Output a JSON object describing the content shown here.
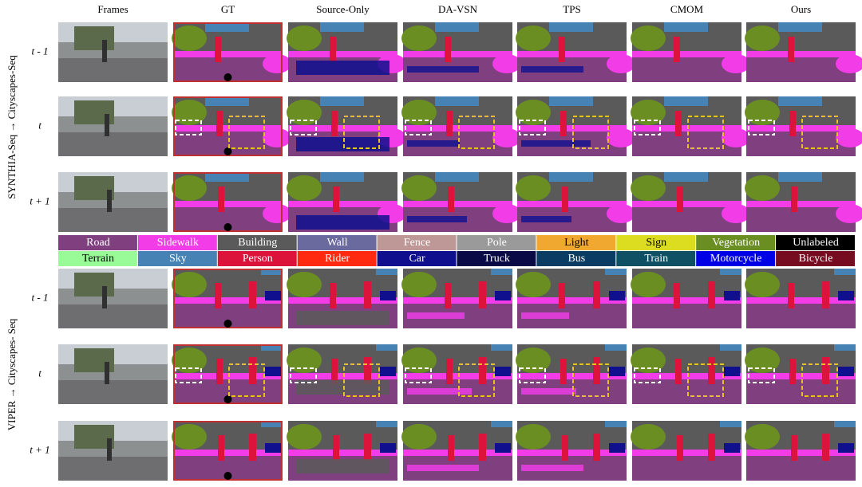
{
  "columns": [
    "Frames",
    "GT",
    "Source-Only",
    "DA-VSN",
    "TPS",
    "CMOM",
    "Ours"
  ],
  "sections": [
    {
      "label": "SYNTHIA-Seq → Cityscapes-Seq",
      "rows": [
        "t - 1",
        "t",
        "t + 1"
      ]
    },
    {
      "label": "VIPER → Cityscapes- Seq",
      "rows": [
        "t - 1",
        "t",
        "t + 1"
      ]
    }
  ],
  "legend": [
    {
      "label": "Road",
      "color": "#804080"
    },
    {
      "label": "Sidewalk",
      "color": "#f23ce8"
    },
    {
      "label": "Building",
      "color": "#5a5a5a"
    },
    {
      "label": "Wall",
      "color": "#6a6a9e"
    },
    {
      "label": "Fence",
      "color": "#be9896"
    },
    {
      "label": "Pole",
      "color": "#9a9a9a"
    },
    {
      "label": "Light",
      "color": "#f0a830"
    },
    {
      "label": "Sign",
      "color": "#dcdc20"
    },
    {
      "label": "Vegetation",
      "color": "#6b8e23"
    },
    {
      "label": "Unlabeled",
      "color": "#000000"
    },
    {
      "label": "Terrain",
      "color": "#98fb98"
    },
    {
      "label": "Sky",
      "color": "#4682b4"
    },
    {
      "label": "Person",
      "color": "#dc143c"
    },
    {
      "label": "Rider",
      "color": "#ff2a10"
    },
    {
      "label": "Car",
      "color": "#10108e"
    },
    {
      "label": "Truck",
      "color": "#0a0a46"
    },
    {
      "label": "Bus",
      "color": "#0a3c64"
    },
    {
      "label": "Train",
      "color": "#0f5064"
    },
    {
      "label": "Motorcycle",
      "color": "#0000e6"
    },
    {
      "label": "Bicycle",
      "color": "#770b20"
    }
  ]
}
